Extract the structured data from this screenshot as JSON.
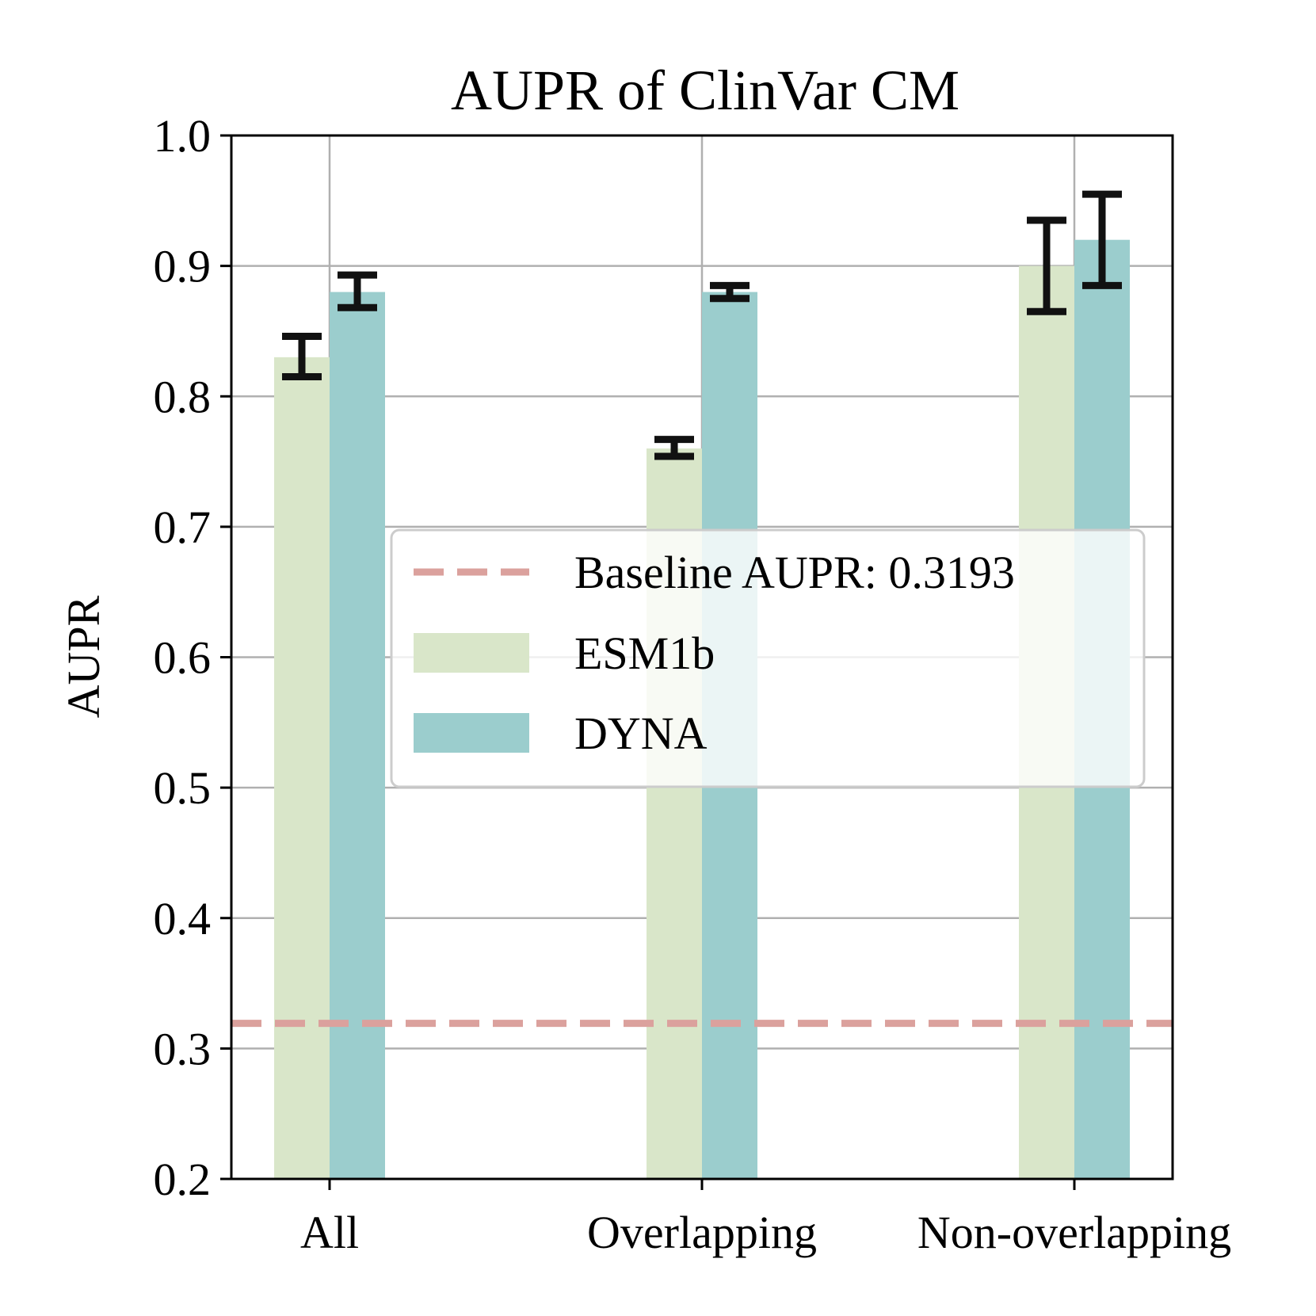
{
  "chart_data": {
    "type": "bar",
    "title": "AUPR of ClinVar CM",
    "xlabel": "",
    "ylabel": "AUPR",
    "ylim": [
      0.2,
      1.0
    ],
    "yticks": [
      0.2,
      0.3,
      0.4,
      0.5,
      0.6,
      0.7,
      0.8,
      0.9,
      1.0
    ],
    "ytick_labels": [
      "0.2",
      "0.3",
      "0.4",
      "0.5",
      "0.6",
      "0.7",
      "0.8",
      "0.9",
      "1.0"
    ],
    "categories": [
      "All",
      "Overlapping",
      "Non-overlapping"
    ],
    "grid": true,
    "legend_position": "center",
    "series": [
      {
        "name": "ESM1b",
        "values": [
          0.83,
          0.76,
          0.9
        ],
        "error_low": [
          0.815,
          0.754,
          0.865
        ],
        "error_high": [
          0.846,
          0.767,
          0.935
        ],
        "color": "#d9e6c9"
      },
      {
        "name": "DYNA",
        "values": [
          0.88,
          0.88,
          0.92
        ],
        "error_low": [
          0.868,
          0.875,
          0.885
        ],
        "error_high": [
          0.893,
          0.885,
          0.955
        ],
        "color": "#9bcdcd"
      }
    ],
    "baseline": {
      "label": "Baseline AUPR: 0.3193",
      "value": 0.3193,
      "color": "#dba19d"
    }
  }
}
